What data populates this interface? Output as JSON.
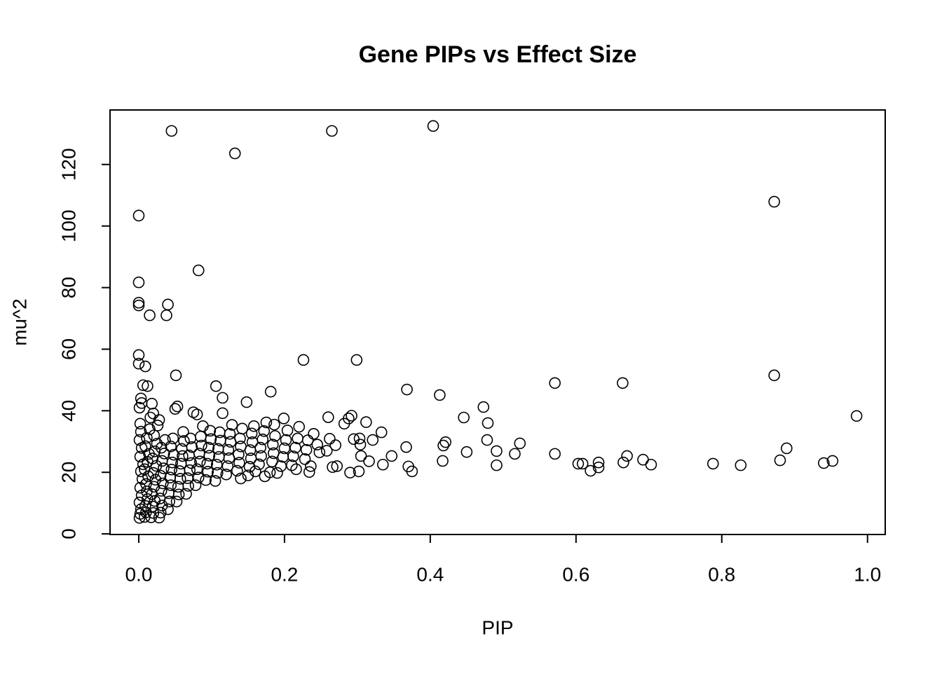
{
  "chart_data": {
    "type": "scatter",
    "title": "Gene PIPs vs Effect Size",
    "xlabel": "PIP",
    "ylabel": "mu^2",
    "color": "#000000",
    "xlim": [
      -0.0394,
      1.0243
    ],
    "ylim": [
      -0.2,
      137.7
    ],
    "xticks": [
      {
        "value": 0,
        "label": "0.0"
      },
      0.2,
      0.4,
      0.6,
      0.8,
      {
        "value": 1,
        "label": "1.0"
      }
    ],
    "yticks": [
      0,
      20,
      40,
      60,
      80,
      100,
      120
    ],
    "x": [
      0.045,
      0.265,
      0.404,
      0.132,
      0.872,
      0.0,
      0.082,
      0.0,
      0.0,
      0.0,
      0.04,
      0.038,
      0.015,
      0.226,
      0.299,
      0.0,
      0.0,
      0.009,
      0.051,
      0.872,
      0.571,
      0.664,
      0.368,
      0.413,
      0.985,
      0.473,
      0.446,
      0.479,
      0.148,
      0.181,
      0.106,
      0.115,
      0.889,
      0.88,
      0.94,
      0.952,
      0.826,
      0.788,
      0.703,
      0.692,
      0.67,
      0.665,
      0.631,
      0.631,
      0.62,
      0.603,
      0.609,
      0.571,
      0.516,
      0.523,
      0.491,
      0.491,
      0.45,
      0.478,
      0.421,
      0.417,
      0.418,
      0.367,
      0.37,
      0.375,
      0.335,
      0.347,
      0.001,
      0.002,
      0.003,
      0.001,
      0.004,
      0.002,
      0.005,
      0.003,
      0.006,
      0.002,
      0.004,
      0.001,
      0.003,
      0.002,
      0.001,
      0.004,
      0.006,
      0.003,
      0.008,
      0.01,
      0.009,
      0.012,
      0.011,
      0.01,
      0.013,
      0.008,
      0.012,
      0.014,
      0.009,
      0.011,
      0.015,
      0.012,
      0.018,
      0.016,
      0.017,
      0.02,
      0.019,
      0.022,
      0.018,
      0.021,
      0.023,
      0.02,
      0.024,
      0.019,
      0.022,
      0.025,
      0.021,
      0.026,
      0.02,
      0.028,
      0.028,
      0.03,
      0.032,
      0.029,
      0.031,
      0.033,
      0.03,
      0.034,
      0.032,
      0.035,
      0.031,
      0.036,
      0.04,
      0.042,
      0.041,
      0.044,
      0.043,
      0.045,
      0.046,
      0.048,
      0.044,
      0.047,
      0.05,
      0.053,
      0.052,
      0.055,
      0.054,
      0.057,
      0.056,
      0.058,
      0.06,
      0.059,
      0.062,
      0.061,
      0.065,
      0.068,
      0.067,
      0.07,
      0.072,
      0.069,
      0.073,
      0.071,
      0.075,
      0.08,
      0.078,
      0.082,
      0.08,
      0.084,
      0.083,
      0.086,
      0.085,
      0.088,
      0.092,
      0.095,
      0.094,
      0.097,
      0.096,
      0.099,
      0.098,
      0.105,
      0.108,
      0.107,
      0.11,
      0.109,
      0.112,
      0.111,
      0.115,
      0.12,
      0.122,
      0.124,
      0.123,
      0.126,
      0.125,
      0.128,
      0.135,
      0.138,
      0.137,
      0.14,
      0.139,
      0.142,
      0.14,
      0.15,
      0.152,
      0.154,
      0.153,
      0.156,
      0.155,
      0.158,
      0.16,
      0.165,
      0.168,
      0.167,
      0.17,
      0.172,
      0.175,
      0.173,
      0.18,
      0.183,
      0.185,
      0.184,
      0.187,
      0.186,
      0.19,
      0.195,
      0.198,
      0.2,
      0.202,
      0.204,
      0.199,
      0.21,
      0.212,
      0.215,
      0.218,
      0.22,
      0.216,
      0.228,
      0.23,
      0.232,
      0.234,
      0.236,
      0.24,
      0.245,
      0.248,
      0.258,
      0.26,
      0.262,
      0.266,
      0.27,
      0.272,
      0.282,
      0.288,
      0.29,
      0.292,
      0.295,
      0.302,
      0.305,
      0.304,
      0.303,
      0.312,
      0.321,
      0.316,
      0.333
    ],
    "values": [
      130.9,
      130.9,
      132.5,
      123.6,
      107.9,
      103.4,
      85.6,
      81.7,
      75.1,
      74.2,
      74.5,
      71.0,
      71.0,
      56.5,
      56.5,
      58.1,
      55.3,
      54.4,
      51.5,
      51.5,
      49.0,
      49.0,
      46.9,
      45.1,
      38.3,
      41.2,
      37.8,
      36.0,
      42.8,
      46.2,
      48.0,
      44.2,
      27.8,
      23.9,
      23.0,
      23.7,
      22.3,
      22.8,
      22.5,
      24.1,
      25.3,
      23.2,
      23.2,
      21.6,
      20.5,
      22.8,
      22.8,
      26.0,
      26.0,
      29.4,
      26.9,
      22.3,
      26.6,
      30.5,
      29.8,
      23.7,
      28.7,
      28.2,
      21.9,
      20.3,
      22.5,
      25.3,
      5.2,
      6.5,
      8.0,
      10.2,
      12.5,
      15.0,
      17.8,
      20.3,
      22.6,
      25.1,
      27.9,
      30.5,
      33.2,
      35.8,
      41.0,
      42.5,
      48.3,
      44.0,
      5.5,
      7.0,
      9.1,
      11.3,
      13.8,
      16.2,
      18.7,
      21.0,
      23.4,
      26.0,
      28.5,
      31.2,
      34.0,
      48.0,
      42.3,
      37.8,
      5.4,
      6.8,
      8.9,
      10.7,
      12.9,
      15.3,
      17.6,
      19.8,
      22.1,
      24.5,
      26.8,
      29.3,
      32.0,
      35.2,
      39.1,
      37.0,
      5.3,
      6.9,
      9.2,
      11.5,
      14.0,
      16.4,
      18.9,
      21.3,
      23.7,
      26.1,
      28.0,
      30.5,
      8.0,
      10.5,
      13.2,
      15.8,
      18.3,
      20.9,
      23.2,
      25.7,
      28.4,
      31.0,
      40.6,
      41.4,
      10.5,
      12.8,
      15.3,
      17.9,
      20.4,
      22.8,
      25.3,
      27.6,
      30.2,
      33.1,
      13.0,
      15.6,
      18.1,
      20.7,
      23.0,
      25.5,
      28.2,
      31.0,
      39.5,
      38.8,
      15.8,
      18.3,
      21.0,
      23.5,
      26.1,
      28.7,
      31.6,
      35.0,
      17.5,
      20.2,
      22.8,
      25.4,
      28.0,
      30.8,
      33.5,
      17.2,
      19.8,
      22.5,
      25.0,
      27.6,
      30.3,
      33.0,
      39.2,
      19.3,
      22.0,
      24.6,
      27.3,
      29.9,
      32.5,
      35.4,
      20.5,
      23.1,
      25.8,
      28.4,
      31.0,
      34.2,
      18.0,
      19.0,
      21.8,
      24.5,
      27.2,
      29.8,
      32.6,
      35.0,
      20.3,
      22.6,
      25.3,
      28.0,
      30.7,
      33.4,
      36.2,
      18.7,
      20.0,
      23.5,
      26.2,
      29.0,
      31.8,
      35.5,
      19.8,
      22.0,
      25.0,
      27.8,
      30.5,
      33.6,
      37.5,
      22.3,
      25.2,
      28.0,
      31.0,
      34.8,
      21.0,
      24.3,
      27.3,
      30.4,
      20.1,
      22.0,
      32.5,
      29.0,
      26.5,
      27.0,
      37.9,
      30.9,
      21.7,
      28.8,
      22.0,
      35.8,
      37.5,
      19.9,
      38.4,
      30.8,
      20.3,
      25.3,
      29.0,
      31.0,
      36.3,
      30.5,
      23.6,
      33.0
    ]
  }
}
